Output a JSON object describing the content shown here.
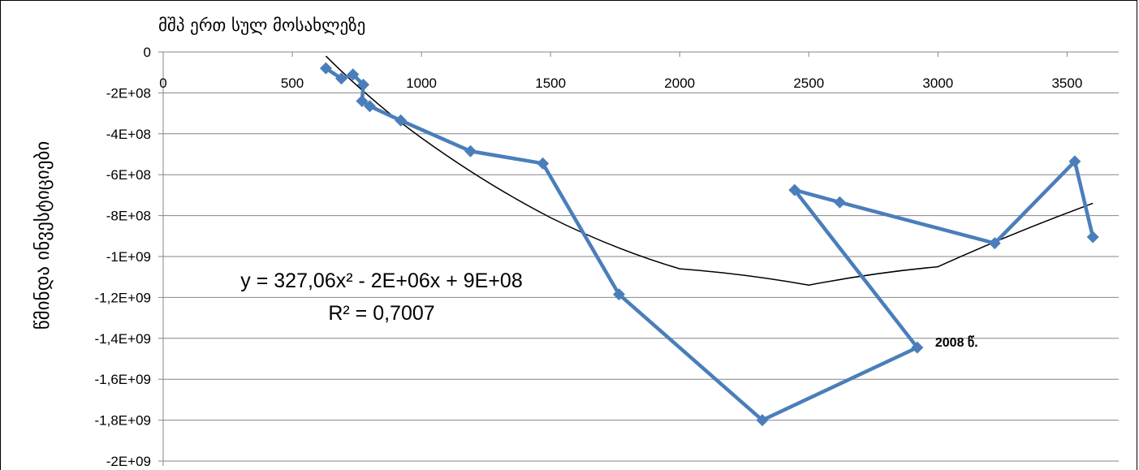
{
  "chart_data": {
    "type": "scatter",
    "title": "მშპ ერთ სულ მოსახლეზე",
    "xlabel": "",
    "ylabel": "წმინდა ინვესტიციები",
    "xlim": [
      0,
      3700
    ],
    "ylim": [
      -2000000000,
      0
    ],
    "x_ticks": [
      0,
      500,
      1000,
      1500,
      2000,
      2500,
      3000,
      3500
    ],
    "x_tick_labels": [
      "0",
      "500",
      "1000",
      "1500",
      "2000",
      "2500",
      "3000",
      "3500"
    ],
    "y_ticks": [
      0,
      -200000000,
      -400000000,
      -600000000,
      -800000000,
      -1000000000,
      -1200000000,
      -1400000000,
      -1600000000,
      -1800000000,
      -2000000000
    ],
    "y_tick_labels": [
      "0",
      "-2E+08",
      "-4E+08",
      "-6E+08",
      "-8E+08",
      "-1E+09",
      "-1,2E+09",
      "-1,4E+09",
      "-1,6E+09",
      "-1,8E+09",
      "-2E+09"
    ],
    "grid": true,
    "series": [
      {
        "color": "#4a7ebb",
        "marker": "diamond",
        "points": [
          {
            "x": 630,
            "y": -80000000
          },
          {
            "x": 690,
            "y": -130000000
          },
          {
            "x": 735,
            "y": -110000000
          },
          {
            "x": 775,
            "y": -160000000
          },
          {
            "x": 770,
            "y": -240000000
          },
          {
            "x": 800,
            "y": -265000000
          },
          {
            "x": 920,
            "y": -335000000
          },
          {
            "x": 1190,
            "y": -485000000
          },
          {
            "x": 1470,
            "y": -545000000
          },
          {
            "x": 1765,
            "y": -1185000000
          },
          {
            "x": 2320,
            "y": -1800000000
          },
          {
            "x": 2920,
            "y": -1445000000
          },
          {
            "x": 2445,
            "y": -675000000
          },
          {
            "x": 2620,
            "y": -735000000
          },
          {
            "x": 3220,
            "y": -935000000
          },
          {
            "x": 3530,
            "y": -535000000
          },
          {
            "x": 3600,
            "y": -905000000
          }
        ]
      }
    ],
    "trendline": {
      "type": "polynomial",
      "color": "#000000",
      "x_range": [
        630,
        3600
      ],
      "y_at_points": [
        {
          "x": 630,
          "y": -20000000
        },
        {
          "x": 1000,
          "y": -420000000
        },
        {
          "x": 1500,
          "y": -810000000
        },
        {
          "x": 2000,
          "y": -1060000000
        },
        {
          "x": 2500,
          "y": -1140000000
        },
        {
          "x": 3000,
          "y": -1050000000
        },
        {
          "x": 3600,
          "y": -740000000
        }
      ]
    },
    "equation": "y = 327,06x² - 2E+06x + 9E+08",
    "r_squared": "R² = 0,7007",
    "annotations": [
      {
        "text": "2008 წ.",
        "x": 2920,
        "y": -1445000000
      }
    ]
  }
}
